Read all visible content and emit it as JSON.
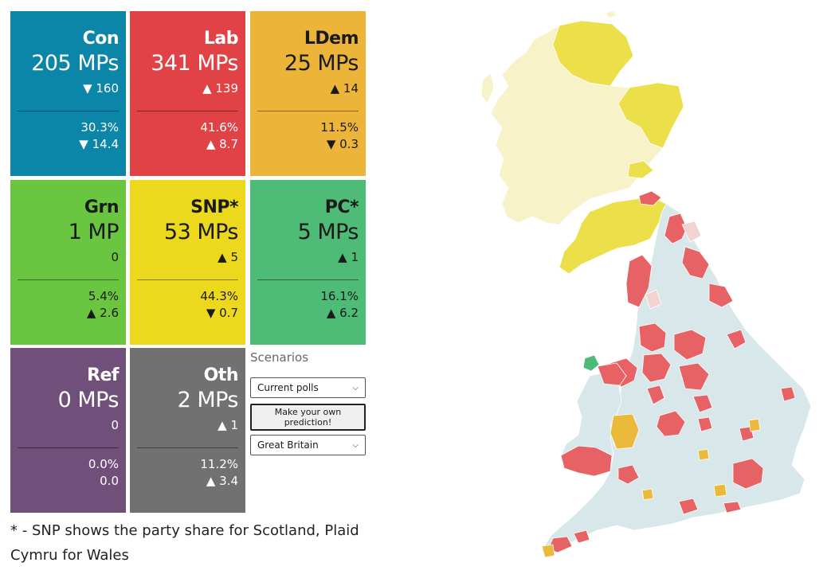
{
  "parties": [
    {
      "key": "con",
      "name": "Con",
      "mps": "205 MPs",
      "mps_change": "▼ 160",
      "share": "30.3%",
      "share_change": "▼ 14.4",
      "color": "#0b85a8",
      "theme": "dark"
    },
    {
      "key": "lab",
      "name": "Lab",
      "mps": "341 MPs",
      "mps_change": "▲ 139",
      "share": "41.6%",
      "share_change": "▲ 8.7",
      "color": "#e04245",
      "theme": "dark"
    },
    {
      "key": "ldem",
      "name": "LDem",
      "mps": "25 MPs",
      "mps_change": "▲ 14",
      "share": "11.5%",
      "share_change": "▼ 0.3",
      "color": "#edb43a",
      "theme": "light"
    },
    {
      "key": "grn",
      "name": "Grn",
      "mps": "1 MP",
      "mps_change": "0",
      "share": "5.4%",
      "share_change": "▲ 2.6",
      "color": "#6ac640",
      "theme": "light"
    },
    {
      "key": "snp",
      "name": "SNP*",
      "mps": "53 MPs",
      "mps_change": "▲ 5",
      "share": "44.3%",
      "share_change": "▼ 0.7",
      "color": "#ecd91e",
      "theme": "light"
    },
    {
      "key": "pc",
      "name": "PC*",
      "mps": "5 MPs",
      "mps_change": "▲ 1",
      "share": "16.1%",
      "share_change": "▲ 6.2",
      "color": "#4ebb77",
      "theme": "light"
    },
    {
      "key": "ref",
      "name": "Ref",
      "mps": "0 MPs",
      "mps_change": "0",
      "share": "0.0%",
      "share_change": "0.0",
      "color": "#704f7a",
      "theme": "dark"
    },
    {
      "key": "oth",
      "name": "Oth",
      "mps": "2 MPs",
      "mps_change": "▲ 1",
      "share": "11.2%",
      "share_change": "▲ 3.4",
      "color": "#717171",
      "theme": "dark"
    }
  ],
  "scenarios": {
    "title": "Scenarios",
    "scenario_select": "Current polls",
    "predict_button": "Make your own prediction!",
    "region_select": "Great Britain"
  },
  "footnote": "* - SNP shows the party share for Scotland, Plaid Cymru for Wales",
  "map_colors": {
    "con": "#d7e7ea",
    "lab": "#e66264",
    "ldem": "#ebba3b",
    "snp_gain": "#ece04a",
    "snp_hold": "#f8f2c8",
    "pc": "#4cbb77",
    "lab_light": "#f2d3d1",
    "boundary": "#ffffff"
  }
}
